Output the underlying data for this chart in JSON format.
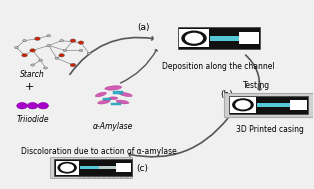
{
  "bg_color": "#f0f0f0",
  "device_a": {
    "label": "(a)",
    "caption": "Deposition along the channel"
  },
  "device_b": {
    "label": "(b)",
    "caption": "3D Printed casing",
    "testing_label": "Testing"
  },
  "device_c": {
    "label": "(c)",
    "caption": "Discoloration due to action of α-amylase"
  },
  "starch_label": "Starch",
  "triiodide_label": "Triiodide",
  "amylase_label": "α-Amylase",
  "black_color": "#111111",
  "cyan_color": "#55c8d8",
  "white_color": "#ffffff",
  "purple_color": "#9900cc",
  "arrow_color": "#555555",
  "font_size": 6.5,
  "small_font": 5.5
}
